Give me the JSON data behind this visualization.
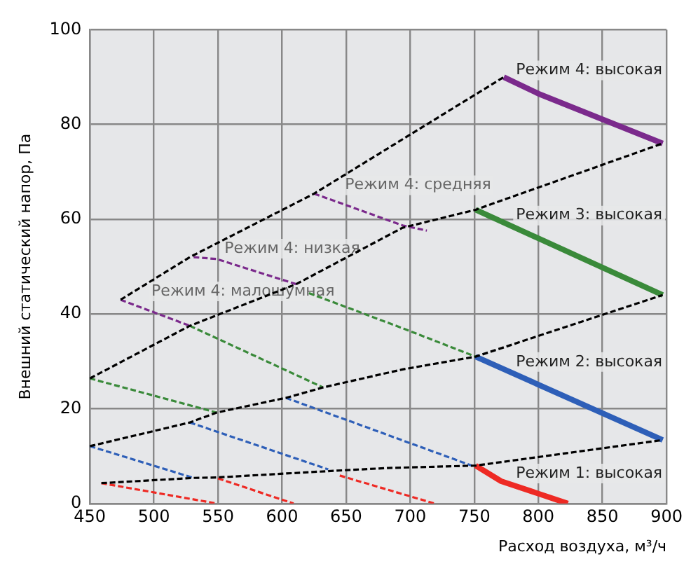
{
  "chart_data": {
    "type": "line",
    "xlabel": "Расход воздуха, м³/ч",
    "ylabel": "Внешний статический напор, Па",
    "xlim": [
      450,
      900
    ],
    "xticks": [
      450,
      500,
      550,
      600,
      650,
      700,
      750,
      800,
      850,
      900
    ],
    "ylim": [
      0,
      100
    ],
    "yticks": [
      0,
      20,
      40,
      60,
      80,
      100
    ],
    "grid": true,
    "legend": false,
    "marker": "none",
    "series": [
      {
        "color": "#000000",
        "line_style": "dashed",
        "x": [
          474,
          528,
          625,
          773
        ],
        "values": [
          43,
          52,
          65.4,
          90
        ]
      },
      {
        "color": "#000000",
        "line_style": "dashed",
        "x": [
          450,
          528,
          611,
          694,
          751,
          897
        ],
        "values": [
          26.4,
          37.5,
          46.3,
          58.2,
          62,
          76
        ]
      },
      {
        "color": "#000000",
        "line_style": "dashed",
        "x": [
          450,
          528,
          549,
          603,
          632,
          694,
          751,
          897
        ],
        "values": [
          12.1,
          17.1,
          19.2,
          22.3,
          24.5,
          28.3,
          31,
          44
        ]
      },
      {
        "color": "#000000",
        "line_style": "dashed",
        "x": [
          459,
          531,
          549,
          640,
          683,
          751,
          897
        ],
        "values": [
          4.3,
          5.4,
          5.5,
          6.9,
          7.5,
          8,
          13.4
        ]
      },
      {
        "name": "Режим 4: малошумная",
        "color": "#7b2a8c",
        "line_style": "dashed",
        "x": [
          474,
          528
        ],
        "values": [
          43,
          37.5
        ]
      },
      {
        "name": "Режим 4: низкая",
        "color": "#7b2a8c",
        "line_style": "dashed",
        "x": [
          531,
          549,
          611
        ],
        "values": [
          52,
          51.6,
          46.3
        ]
      },
      {
        "name": "Режим 4: средняя",
        "color": "#7b2a8c",
        "line_style": "dashed",
        "x": [
          625,
          694,
          713
        ],
        "values": [
          65.4,
          58.7,
          57.6
        ]
      },
      {
        "name": "Режим 4: высокая",
        "color": "#7b2a8c",
        "line_style": "solid",
        "x": [
          773,
          800,
          897
        ],
        "values": [
          90,
          86.5,
          76
        ]
      },
      {
        "color": "#3a8a3a",
        "line_style": "dashed",
        "x": [
          450,
          549
        ],
        "values": [
          26.4,
          19.2
        ]
      },
      {
        "color": "#3a8a3a",
        "line_style": "dashed",
        "x": [
          528,
          632
        ],
        "values": [
          37.5,
          24.5
        ]
      },
      {
        "color": "#3a8a3a",
        "line_style": "dashed",
        "x": [
          621,
          694,
          751
        ],
        "values": [
          44.4,
          37,
          31
        ]
      },
      {
        "name": "Режим 3: высокая",
        "color": "#3a8a3a",
        "line_style": "solid",
        "x": [
          751,
          897
        ],
        "values": [
          62,
          44
        ]
      },
      {
        "color": "#2e5fb8",
        "line_style": "dashed",
        "x": [
          450,
          531
        ],
        "values": [
          12.1,
          5.4
        ]
      },
      {
        "color": "#2e5fb8",
        "line_style": "dashed",
        "x": [
          528,
          636
        ],
        "values": [
          17.1,
          7.2
        ]
      },
      {
        "color": "#2e5fb8",
        "line_style": "dashed",
        "x": [
          603,
          748
        ],
        "values": [
          22.3,
          8
        ]
      },
      {
        "name": "Режим 2: высокая",
        "color": "#2e5fb8",
        "line_style": "solid",
        "x": [
          751,
          897
        ],
        "values": [
          31,
          13.4
        ]
      },
      {
        "color": "#ee2a24",
        "line_style": "dashed",
        "x": [
          459,
          549
        ],
        "values": [
          4.3,
          0
        ]
      },
      {
        "color": "#ee2a24",
        "line_style": "dashed",
        "x": [
          550,
          609
        ],
        "values": [
          5.3,
          0
        ]
      },
      {
        "color": "#ee2a24",
        "line_style": "dashed",
        "x": [
          645,
          719
        ],
        "values": [
          5.9,
          0
        ]
      },
      {
        "name": "Режим 1: высокая",
        "color": "#ee2a24",
        "line_style": "solid",
        "x": [
          751,
          771,
          823
        ],
        "values": [
          8,
          4.7,
          0
        ]
      }
    ]
  }
}
